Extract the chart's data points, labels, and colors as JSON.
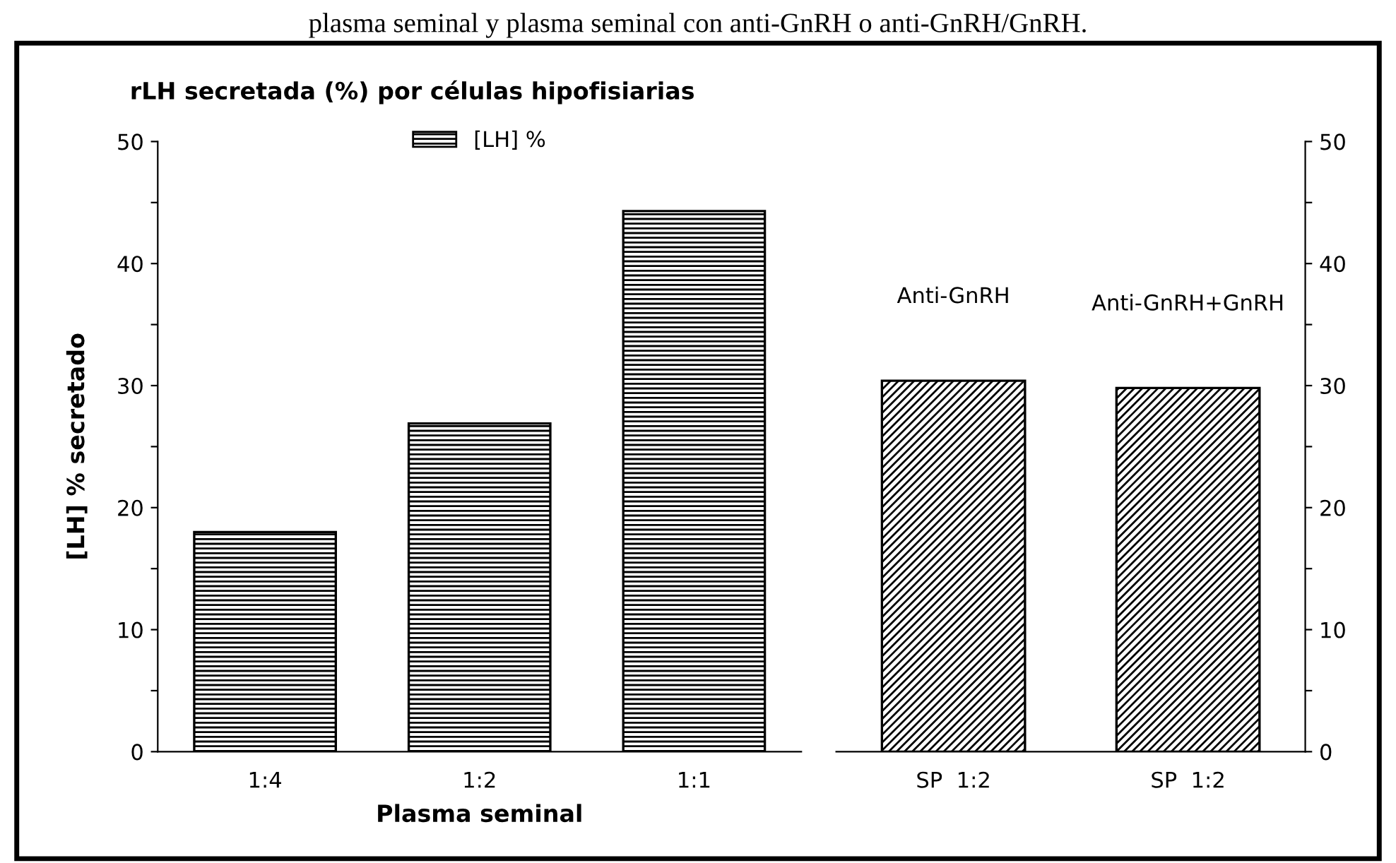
{
  "chart_data": [
    {
      "type": "bar",
      "title": "rLH secretada (%) por células hipofisiarias",
      "xlabel": "Plasma seminal",
      "ylabel": "[LH] % secretado",
      "annotations": [
        "plasma seminal y plasma seminal con anti-GnRH o anti-GnRH/GnRH."
      ],
      "categories": [
        "1:4",
        "1:2",
        "1:1"
      ],
      "series": [
        {
          "name": "[LH] %",
          "color": "#000000",
          "values": [
            18.0,
            26.9,
            44.3
          ]
        }
      ],
      "ylim": [
        0,
        50
      ],
      "yticks": [
        0,
        {
          "value": 5,
          "label": null
        },
        10,
        {
          "value": 15,
          "label": null
        },
        20,
        {
          "value": 25,
          "label": null
        },
        30,
        {
          "value": 35,
          "label": null
        },
        40,
        {
          "value": 45,
          "label": null
        },
        50
      ],
      "legend": "top",
      "grid": false
    },
    {
      "type": "bar",
      "annotations": [
        "Anti-GnRH",
        "Anti-GnRH+GnRH"
      ],
      "categories": [
        "SP  1:2",
        "SP  1:2"
      ],
      "series": [
        {
          "color": "#000000",
          "values": [
            30.4,
            29.8
          ],
          "axis": "y2"
        }
      ],
      "y2lim": [
        0,
        50
      ],
      "y2ticks": [
        0,
        {
          "value": 5,
          "label": null
        },
        10,
        {
          "value": 15,
          "label": null
        },
        20,
        {
          "value": 25,
          "label": null
        },
        30,
        {
          "value": 35,
          "label": null
        },
        40,
        {
          "value": 45,
          "label": null
        },
        50
      ],
      "grid": false
    }
  ]
}
